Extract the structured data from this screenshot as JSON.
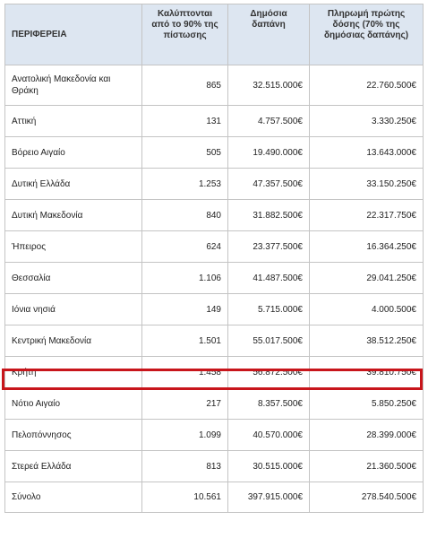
{
  "table": {
    "headers": [
      "ΠΕΡΙΦΕΡΕΙΑ",
      "Καλύπτονται από το 90% της πίστωσης",
      "Δημόσια δαπάνη",
      "Πληρωμή πρώτης δόσης (70% της δημόσιας δαπάνης)"
    ],
    "rows": [
      {
        "region": "Ανατολική Μακεδονία και Θράκη",
        "covered": "865",
        "spending": "32.515.000€",
        "payment": "22.760.500€"
      },
      {
        "region": "Αττική",
        "covered": "131",
        "spending": "4.757.500€",
        "payment": "3.330.250€"
      },
      {
        "region": "Βόρειο Αιγαίο",
        "covered": "505",
        "spending": "19.490.000€",
        "payment": "13.643.000€"
      },
      {
        "region": "Δυτική Ελλάδα",
        "covered": "1.253",
        "spending": "47.357.500€",
        "payment": "33.150.250€"
      },
      {
        "region": "Δυτική Μακεδονία",
        "covered": "840",
        "spending": "31.882.500€",
        "payment": "22.317.750€"
      },
      {
        "region": "Ήπειρος",
        "covered": "624",
        "spending": "23.377.500€",
        "payment": "16.364.250€"
      },
      {
        "region": "Θεσσαλία",
        "covered": "1.106",
        "spending": "41.487.500€",
        "payment": "29.041.250€"
      },
      {
        "region": "Ιόνια νησιά",
        "covered": "149",
        "spending": "5.715.000€",
        "payment": "4.000.500€"
      },
      {
        "region": "Κεντρική Μακεδονία",
        "covered": "1.501",
        "spending": "55.017.500€",
        "payment": "38.512.250€"
      },
      {
        "region": "Κρήτη",
        "covered": "1.458",
        "spending": "56.872.500€",
        "payment": "39.810.750€"
      },
      {
        "region": "Νότιο Αιγαίο",
        "covered": "217",
        "spending": "8.357.500€",
        "payment": "5.850.250€"
      },
      {
        "region": "Πελοπόννησος",
        "covered": "1.099",
        "spending": "40.570.000€",
        "payment": "28.399.000€"
      },
      {
        "region": "Στερεά Ελλάδα",
        "covered": "813",
        "spending": "30.515.000€",
        "payment": "21.360.500€"
      },
      {
        "region": "Σύνολο",
        "covered": "10.561",
        "spending": "397.915.000€",
        "payment": "278.540.500€"
      }
    ]
  },
  "highlight": {
    "row_region": "Κρήτη",
    "color": "#c8151b"
  },
  "colors": {
    "header_bg": "#dde6f1",
    "border": "#c4c4c4"
  }
}
